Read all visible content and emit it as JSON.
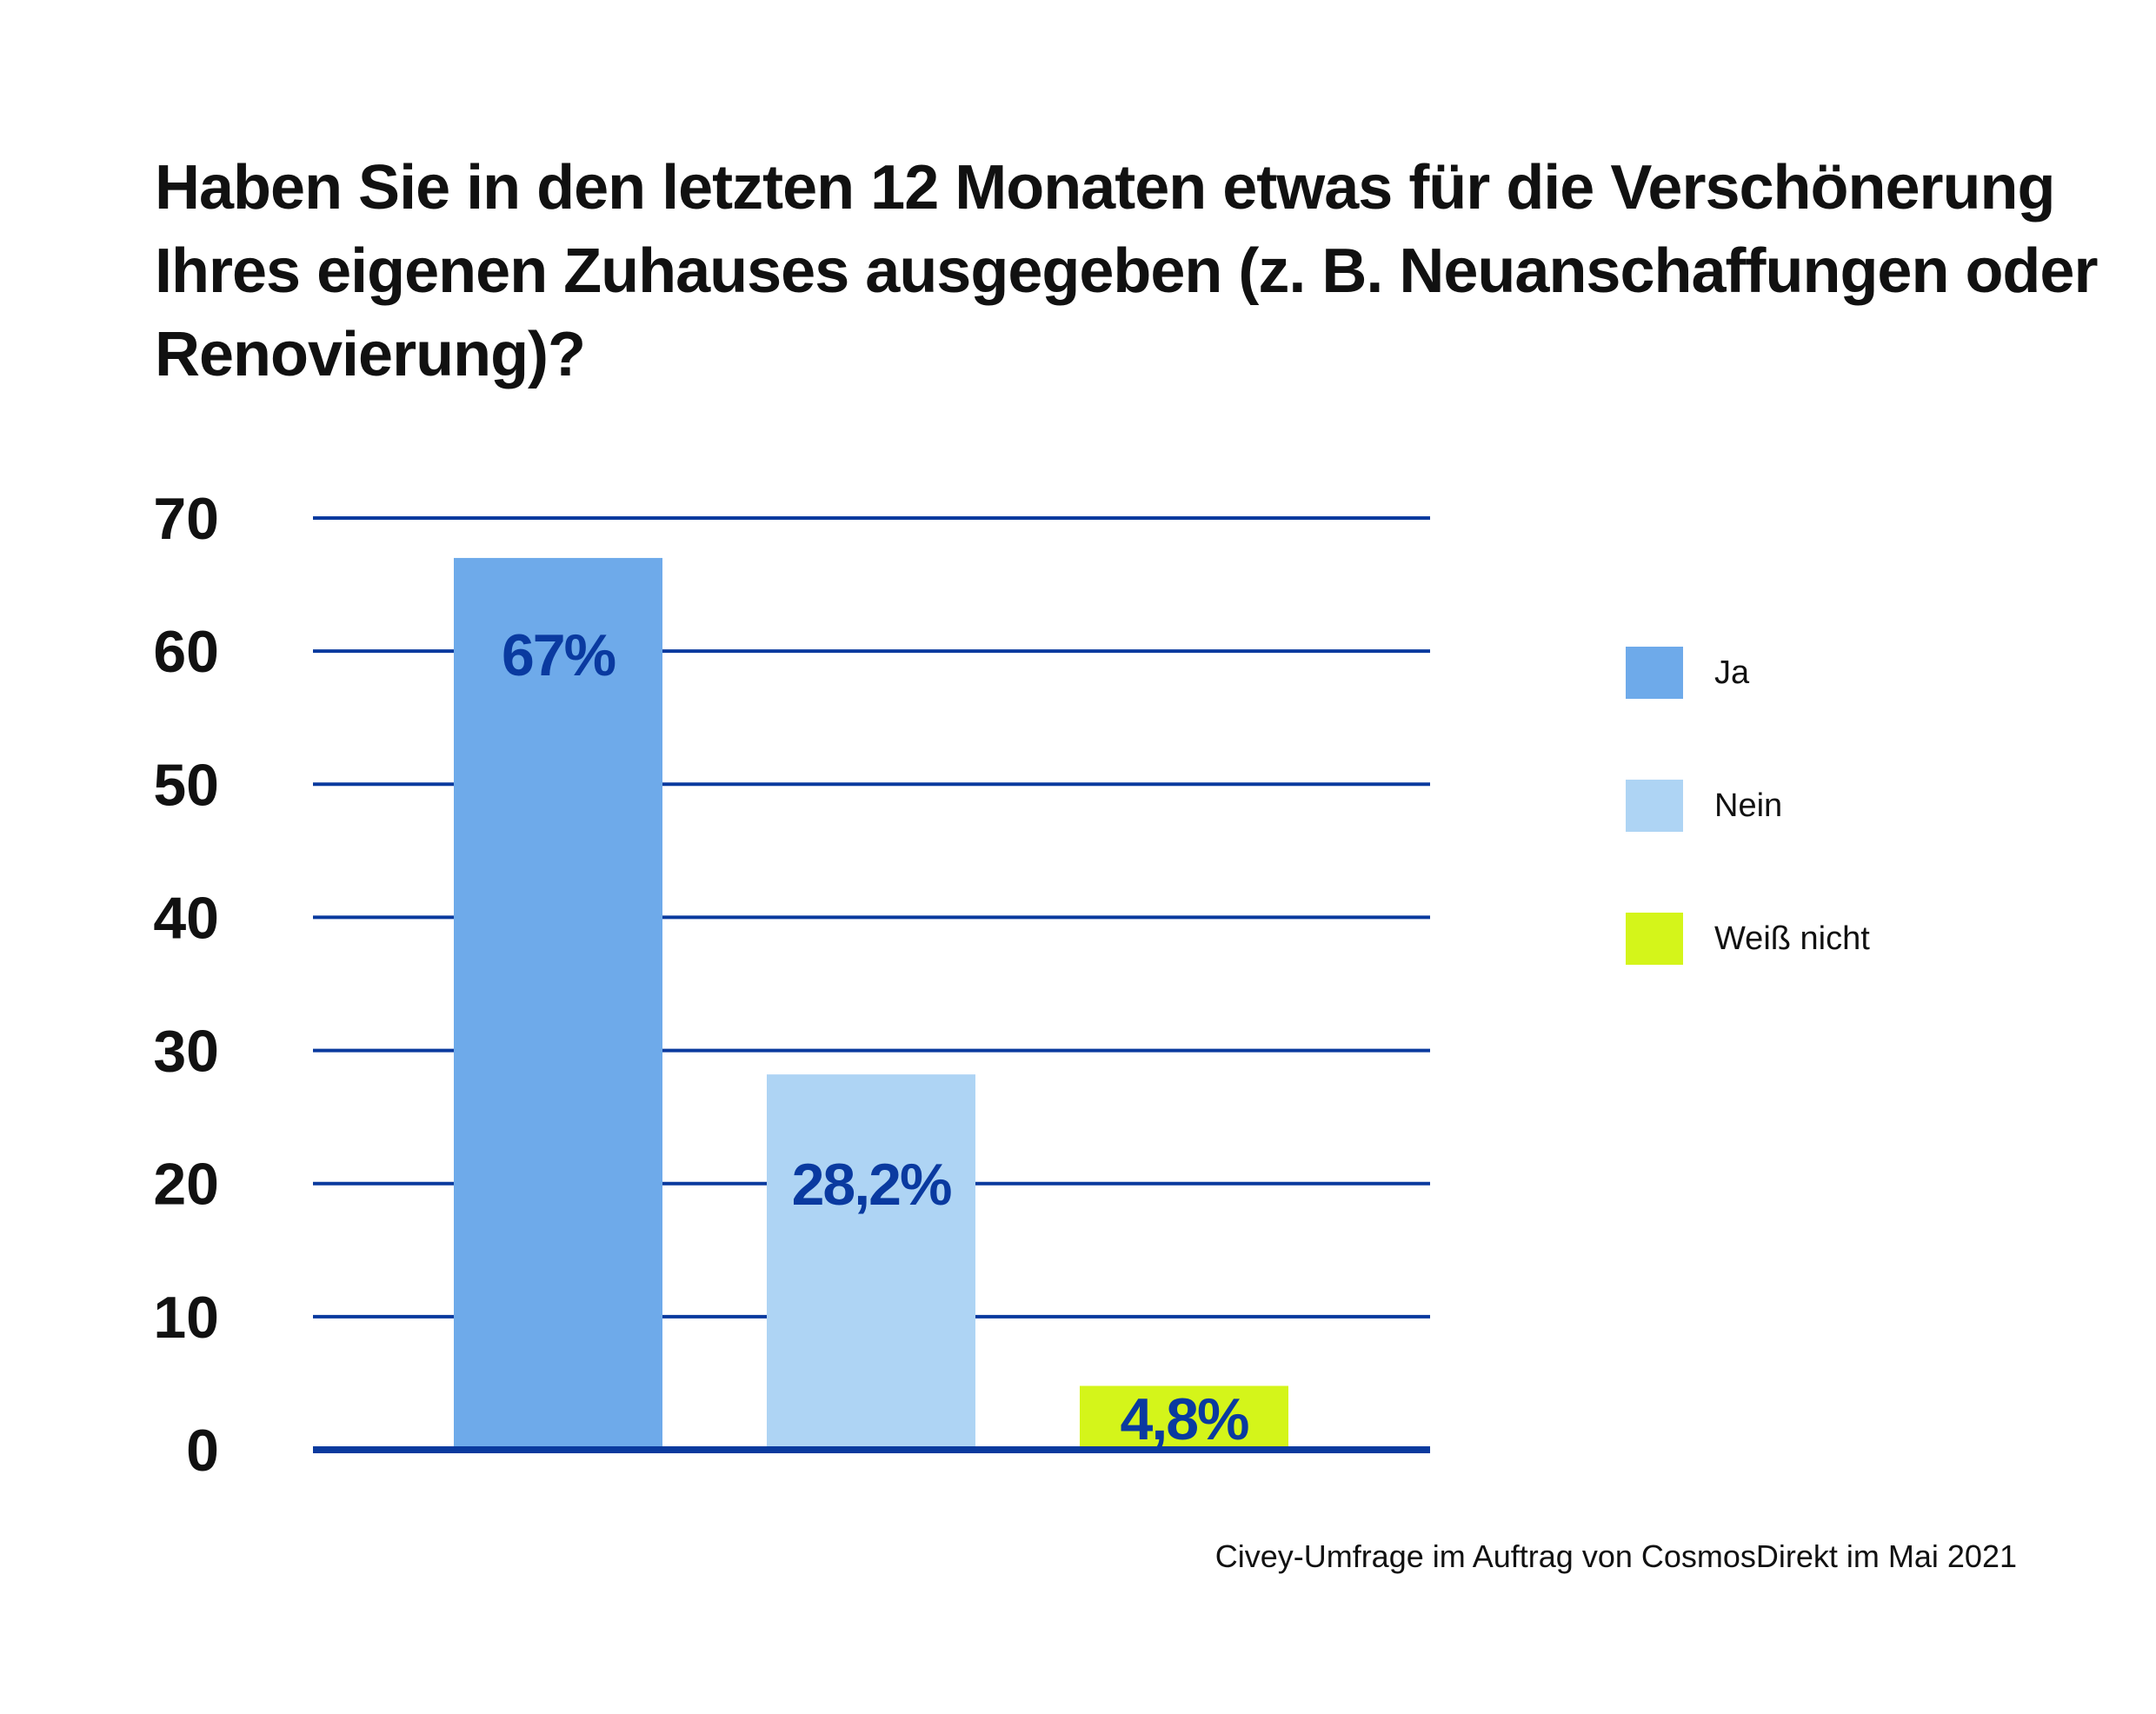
{
  "title_lines": [
    "Haben Sie in den letzten 12 Monaten etwas für die Verschönerung",
    "Ihres eigenen Zuhauses ausgegeben (z. B. Neuanschaffungen oder",
    "Renovierung)?"
  ],
  "source": "Civey-Umfrage im Auftrag von CosmosDirekt im Mai 2021",
  "colors": {
    "gridline": "#0a3a9e",
    "label_text": "#0a3aa0",
    "ja": "#6eaaea",
    "nein": "#aed4f4",
    "weiss_nicht": "#d4f51a"
  },
  "chart_data": {
    "type": "bar",
    "categories": [
      "Ja",
      "Nein",
      "Weiß nicht"
    ],
    "values": [
      67,
      28.2,
      4.8
    ],
    "data_labels": [
      "67%",
      "28,2%",
      "4,8%"
    ],
    "title": "Haben Sie in den letzten 12 Monaten etwas für die Verschönerung Ihres eigenen Zuhauses ausgegeben (z. B. Neuanschaffungen oder Renovierung)?",
    "xlabel": "",
    "ylabel": "",
    "ylim": [
      0,
      70
    ],
    "y_ticks": [
      0,
      10,
      20,
      30,
      40,
      50,
      60,
      70
    ],
    "grid": true,
    "legend": {
      "placement": "right",
      "entries": [
        "Ja",
        "Nein",
        "Weiß nicht"
      ]
    }
  }
}
